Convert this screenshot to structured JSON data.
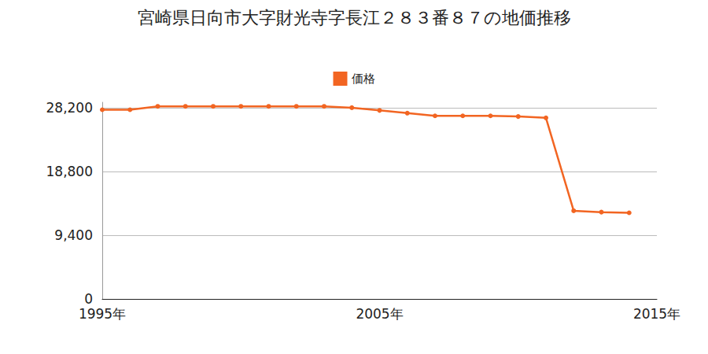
{
  "chart_data": {
    "type": "line",
    "title": "宮崎県日向市大字財光寺字長江２８３番８７の地価推移",
    "series": [
      {
        "name": "価格",
        "color": "#f26522",
        "marker": "circle",
        "x": [
          1995,
          1996,
          1997,
          1998,
          1999,
          2000,
          2001,
          2002,
          2003,
          2004,
          2005,
          2006,
          2007,
          2008,
          2009,
          2010,
          2011,
          2012,
          2013,
          2014
        ],
        "values": [
          27900,
          27900,
          28400,
          28400,
          28400,
          28400,
          28400,
          28400,
          28400,
          28200,
          27800,
          27400,
          27000,
          27000,
          27000,
          26900,
          26700,
          13000,
          12800,
          12700
        ]
      }
    ],
    "xlim": [
      1995,
      2015
    ],
    "xticks": [
      {
        "value": 1995,
        "label": "1995年"
      },
      {
        "value": 2005,
        "label": "2005年"
      },
      {
        "value": 2015,
        "label": "2015年"
      }
    ],
    "ylim": [
      0,
      29000
    ],
    "yticks": [
      0,
      {
        "value": 9400,
        "label": "9,400"
      },
      {
        "value": 18800,
        "label": "18,800"
      },
      {
        "value": 28200,
        "label": "28,200"
      }
    ],
    "grid": true,
    "legend": "top"
  }
}
